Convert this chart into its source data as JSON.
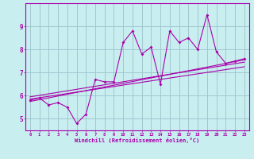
{
  "background_color": "#c8eef0",
  "grid_color": "#a0c8d0",
  "line_color": "#aa00aa",
  "xlim": [
    -0.5,
    23.5
  ],
  "ylim": [
    4.5,
    10.0
  ],
  "xtick_labels": [
    "0",
    "1",
    "2",
    "3",
    "4",
    "5",
    "6",
    "7",
    "8",
    "9",
    "10",
    "11",
    "12",
    "13",
    "14",
    "15",
    "16",
    "17",
    "18",
    "19",
    "20",
    "21",
    "22",
    "23"
  ],
  "yticks": [
    5,
    6,
    7,
    8,
    9
  ],
  "xlabel": "Windchill (Refroidissement éolien,°C)",
  "series1_x": [
    0,
    1,
    2,
    3,
    4,
    5,
    6,
    7,
    8,
    9,
    10,
    11,
    12,
    13,
    14,
    15,
    16,
    17,
    18,
    19,
    20,
    21,
    22,
    23
  ],
  "series1_y": [
    5.8,
    5.9,
    5.6,
    5.7,
    5.5,
    4.8,
    5.2,
    6.7,
    6.6,
    6.6,
    8.3,
    8.8,
    7.8,
    8.1,
    6.5,
    8.8,
    8.3,
    8.5,
    8.0,
    9.5,
    7.9,
    7.4,
    7.5,
    7.6
  ],
  "line1_x": [
    0,
    23
  ],
  "line1_y": [
    5.75,
    7.55
  ],
  "line2_x": [
    0,
    23
  ],
  "line2_y": [
    5.85,
    7.25
  ],
  "line3_x": [
    0,
    23
  ],
  "line3_y": [
    5.95,
    7.45
  ]
}
